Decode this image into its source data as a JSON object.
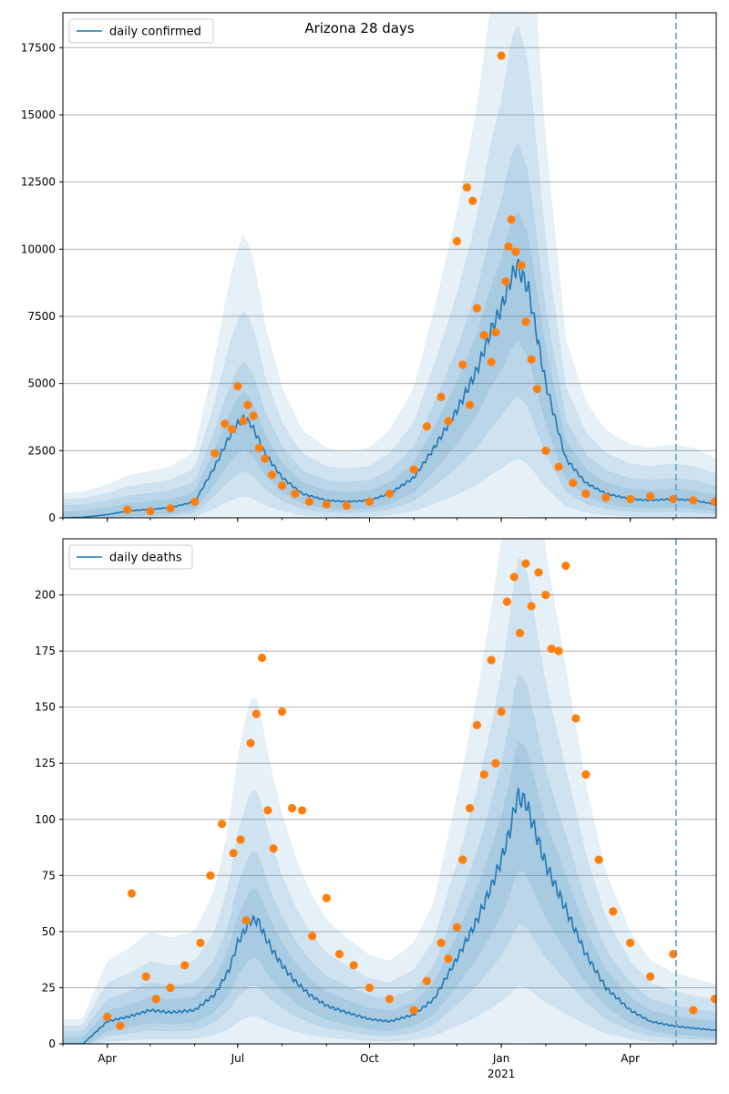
{
  "chart_data": [
    {
      "type": "line",
      "title": "Arizona 28 days",
      "series": [
        {
          "name": "daily confirmed",
          "role": "model-median",
          "color": "#1f77b4",
          "x": [
            "2020-03-01",
            "2020-03-15",
            "2020-04-01",
            "2020-04-15",
            "2020-05-01",
            "2020-05-15",
            "2020-06-01",
            "2020-06-15",
            "2020-06-25",
            "2020-07-01",
            "2020-07-05",
            "2020-07-10",
            "2020-07-15",
            "2020-07-20",
            "2020-08-01",
            "2020-08-15",
            "2020-09-01",
            "2020-09-15",
            "2020-10-01",
            "2020-10-15",
            "2020-11-01",
            "2020-11-15",
            "2020-12-01",
            "2020-12-15",
            "2020-12-25",
            "2021-01-01",
            "2021-01-07",
            "2021-01-12",
            "2021-01-20",
            "2021-02-01",
            "2021-02-15",
            "2021-03-01",
            "2021-03-15",
            "2021-04-01",
            "2021-04-15",
            "2021-05-01",
            "2021-05-15",
            "2021-05-31"
          ],
          "y": [
            0,
            20,
            120,
            250,
            320,
            380,
            600,
            1900,
            3000,
            3500,
            3700,
            3500,
            3000,
            2400,
            1500,
            900,
            650,
            600,
            650,
            900,
            1500,
            2600,
            4000,
            5500,
            7000,
            7800,
            8800,
            9400,
            8500,
            5000,
            2200,
            1300,
            900,
            700,
            650,
            700,
            650,
            500
          ]
        },
        {
          "name": "",
          "role": "observed",
          "color": "#ff7f0e",
          "x": [
            "2020-04-15",
            "2020-05-01",
            "2020-05-15",
            "2020-06-01",
            "2020-06-15",
            "2020-06-22",
            "2020-06-27",
            "2020-07-01",
            "2020-07-05",
            "2020-07-08",
            "2020-07-12",
            "2020-07-16",
            "2020-07-20",
            "2020-07-25",
            "2020-08-01",
            "2020-08-10",
            "2020-08-20",
            "2020-09-01",
            "2020-09-15",
            "2020-10-01",
            "2020-10-15",
            "2020-11-01",
            "2020-11-10",
            "2020-11-20",
            "2020-11-25",
            "2020-12-01",
            "2020-12-05",
            "2020-12-08",
            "2020-12-10",
            "2020-12-12",
            "2020-12-15",
            "2020-12-20",
            "2020-12-25",
            "2020-12-28",
            "2021-01-01",
            "2021-01-04",
            "2021-01-06",
            "2021-01-08",
            "2021-01-11",
            "2021-01-15",
            "2021-01-18",
            "2021-01-22",
            "2021-01-26",
            "2021-02-01",
            "2021-02-10",
            "2021-02-20",
            "2021-03-01",
            "2021-03-15",
            "2021-04-01",
            "2021-04-15",
            "2021-05-01",
            "2021-05-15",
            "2021-05-30"
          ],
          "y": [
            300,
            250,
            350,
            600,
            2400,
            3500,
            3300,
            4900,
            3600,
            4200,
            3800,
            2600,
            2200,
            1600,
            1200,
            900,
            600,
            500,
            450,
            600,
            900,
            1800,
            3400,
            4500,
            3600,
            10300,
            5700,
            12300,
            4200,
            11800,
            7800,
            6800,
            5800,
            6900,
            17200,
            8800,
            10100,
            11100,
            9900,
            9400,
            7300,
            5900,
            4800,
            2500,
            1900,
            1300,
            900,
            750,
            700,
            800,
            700,
            650,
            600
          ]
        }
      ],
      "vertical_marker": "2021-05-03",
      "ylim": [
        0,
        18800
      ],
      "yticks": [
        0,
        2500,
        5000,
        7500,
        10000,
        12500,
        15000,
        17500
      ],
      "ytick_labels": [
        "0",
        "2500",
        "5000",
        "7500",
        "10000",
        "12500",
        "15000",
        "17500"
      ],
      "legend": "upper-left",
      "grid": "y"
    },
    {
      "type": "line",
      "series": [
        {
          "name": "daily deaths",
          "role": "model-median",
          "color": "#1f77b4",
          "x": [
            "2020-03-01",
            "2020-03-15",
            "2020-04-01",
            "2020-04-15",
            "2020-05-01",
            "2020-05-15",
            "2020-06-01",
            "2020-06-15",
            "2020-06-25",
            "2020-07-01",
            "2020-07-10",
            "2020-07-15",
            "2020-07-20",
            "2020-07-25",
            "2020-08-01",
            "2020-08-10",
            "2020-08-20",
            "2020-09-01",
            "2020-09-15",
            "2020-10-01",
            "2020-10-15",
            "2020-11-01",
            "2020-11-15",
            "2020-12-01",
            "2020-12-15",
            "2020-12-25",
            "2021-01-01",
            "2021-01-07",
            "2021-01-12",
            "2021-01-18",
            "2021-01-22",
            "2021-02-01",
            "2021-02-15",
            "2021-03-01",
            "2021-03-15",
            "2021-04-01",
            "2021-04-15",
            "2021-05-01",
            "2021-05-15",
            "2021-05-31"
          ],
          "y": [
            0,
            0,
            10,
            12,
            15,
            14,
            15,
            22,
            33,
            45,
            55,
            55,
            48,
            42,
            35,
            28,
            22,
            17,
            14,
            11,
            10,
            13,
            20,
            38,
            55,
            70,
            82,
            95,
            110,
            108,
            100,
            80,
            60,
            40,
            25,
            15,
            10,
            8,
            7,
            6
          ]
        },
        {
          "name": "",
          "role": "observed",
          "color": "#ff7f0e",
          "x": [
            "2020-04-01",
            "2020-04-10",
            "2020-04-18",
            "2020-04-28",
            "2020-05-05",
            "2020-05-15",
            "2020-05-25",
            "2020-06-05",
            "2020-06-12",
            "2020-06-20",
            "2020-06-28",
            "2020-07-03",
            "2020-07-07",
            "2020-07-10",
            "2020-07-14",
            "2020-07-18",
            "2020-07-22",
            "2020-07-26",
            "2020-08-01",
            "2020-08-08",
            "2020-08-15",
            "2020-08-22",
            "2020-09-01",
            "2020-09-10",
            "2020-09-20",
            "2020-10-01",
            "2020-10-15",
            "2020-11-01",
            "2020-11-10",
            "2020-11-20",
            "2020-11-25",
            "2020-12-01",
            "2020-12-05",
            "2020-12-10",
            "2020-12-15",
            "2020-12-20",
            "2020-12-25",
            "2020-12-28",
            "2021-01-01",
            "2021-01-05",
            "2021-01-10",
            "2021-01-14",
            "2021-01-18",
            "2021-01-22",
            "2021-01-27",
            "2021-02-01",
            "2021-02-05",
            "2021-02-10",
            "2021-02-15",
            "2021-02-22",
            "2021-03-01",
            "2021-03-10",
            "2021-03-20",
            "2021-04-01",
            "2021-04-15",
            "2021-05-01",
            "2021-05-15",
            "2021-05-30"
          ],
          "y": [
            12,
            8,
            67,
            30,
            20,
            25,
            35,
            45,
            75,
            98,
            85,
            91,
            55,
            134,
            147,
            172,
            104,
            87,
            148,
            105,
            104,
            48,
            65,
            40,
            35,
            25,
            20,
            15,
            28,
            45,
            38,
            52,
            82,
            105,
            142,
            120,
            171,
            125,
            148,
            197,
            208,
            183,
            214,
            195,
            210,
            200,
            176,
            175,
            213,
            145,
            120,
            82,
            59,
            45,
            30,
            40,
            15,
            20
          ]
        }
      ],
      "vertical_marker": "2021-05-03",
      "ylim": [
        0,
        225
      ],
      "yticks": [
        0,
        25,
        50,
        75,
        100,
        125,
        150,
        175,
        200
      ],
      "ytick_labels": [
        "0",
        "25",
        "50",
        "75",
        "100",
        "125",
        "150",
        "175",
        "200"
      ],
      "legend": "upper-left",
      "grid": "y"
    }
  ],
  "xaxis": {
    "xlim": [
      "2020-03-01",
      "2021-05-31"
    ],
    "ticks": [
      {
        "date": "2020-04-01",
        "label": "Apr"
      },
      {
        "date": "2020-07-01",
        "label": "Jul"
      },
      {
        "date": "2020-10-01",
        "label": "Oct"
      },
      {
        "date": "2021-01-01",
        "label": "Jan",
        "sublabel": "2021"
      },
      {
        "date": "2021-04-01",
        "label": "Apr"
      }
    ]
  },
  "colors": {
    "median": "#1f77b4",
    "observed": "#ff7f0e",
    "band": "#1f77b4",
    "marker": "#5a9fbf",
    "grid": "#b0b0b0"
  }
}
